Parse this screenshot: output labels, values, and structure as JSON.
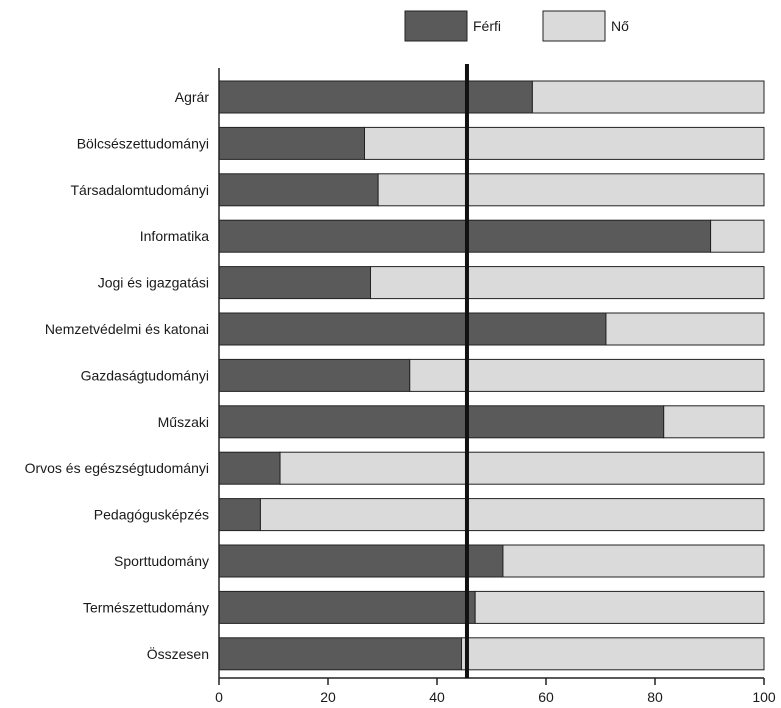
{
  "chart_data": {
    "type": "bar",
    "orientation": "horizontal",
    "stacked": true,
    "categories": [
      "Agrár",
      "Bölcsészettudományi",
      "Társadalomtudományi",
      "Informatika",
      "Jogi és igazgatási",
      "Nemzetvédelmi és katonai",
      "Gazdaságtudományi",
      "Műszaki",
      "Orvos és egészségtudományi",
      "Pedagógusképzés",
      "Sporttudomány",
      "Természettudomány",
      "Összesen"
    ],
    "series": [
      {
        "name": "Férfi",
        "color": "#5a5a5a",
        "values": [
          57.5,
          26.7,
          29.2,
          90.2,
          27.8,
          71.0,
          35.0,
          81.6,
          11.2,
          7.6,
          52.1,
          47.0,
          44.5
        ]
      },
      {
        "name": "Nő",
        "color": "#dadada",
        "values": [
          42.5,
          73.3,
          70.8,
          9.8,
          72.2,
          29.0,
          65.0,
          18.4,
          88.8,
          92.4,
          47.9,
          53.0,
          55.5
        ]
      }
    ],
    "xlim": [
      0,
      100
    ],
    "xticks": [
      "0",
      "20",
      "40",
      "60",
      "80",
      "100"
    ],
    "reference_line": 45.5,
    "legend_position": "top-center",
    "grid": false
  }
}
